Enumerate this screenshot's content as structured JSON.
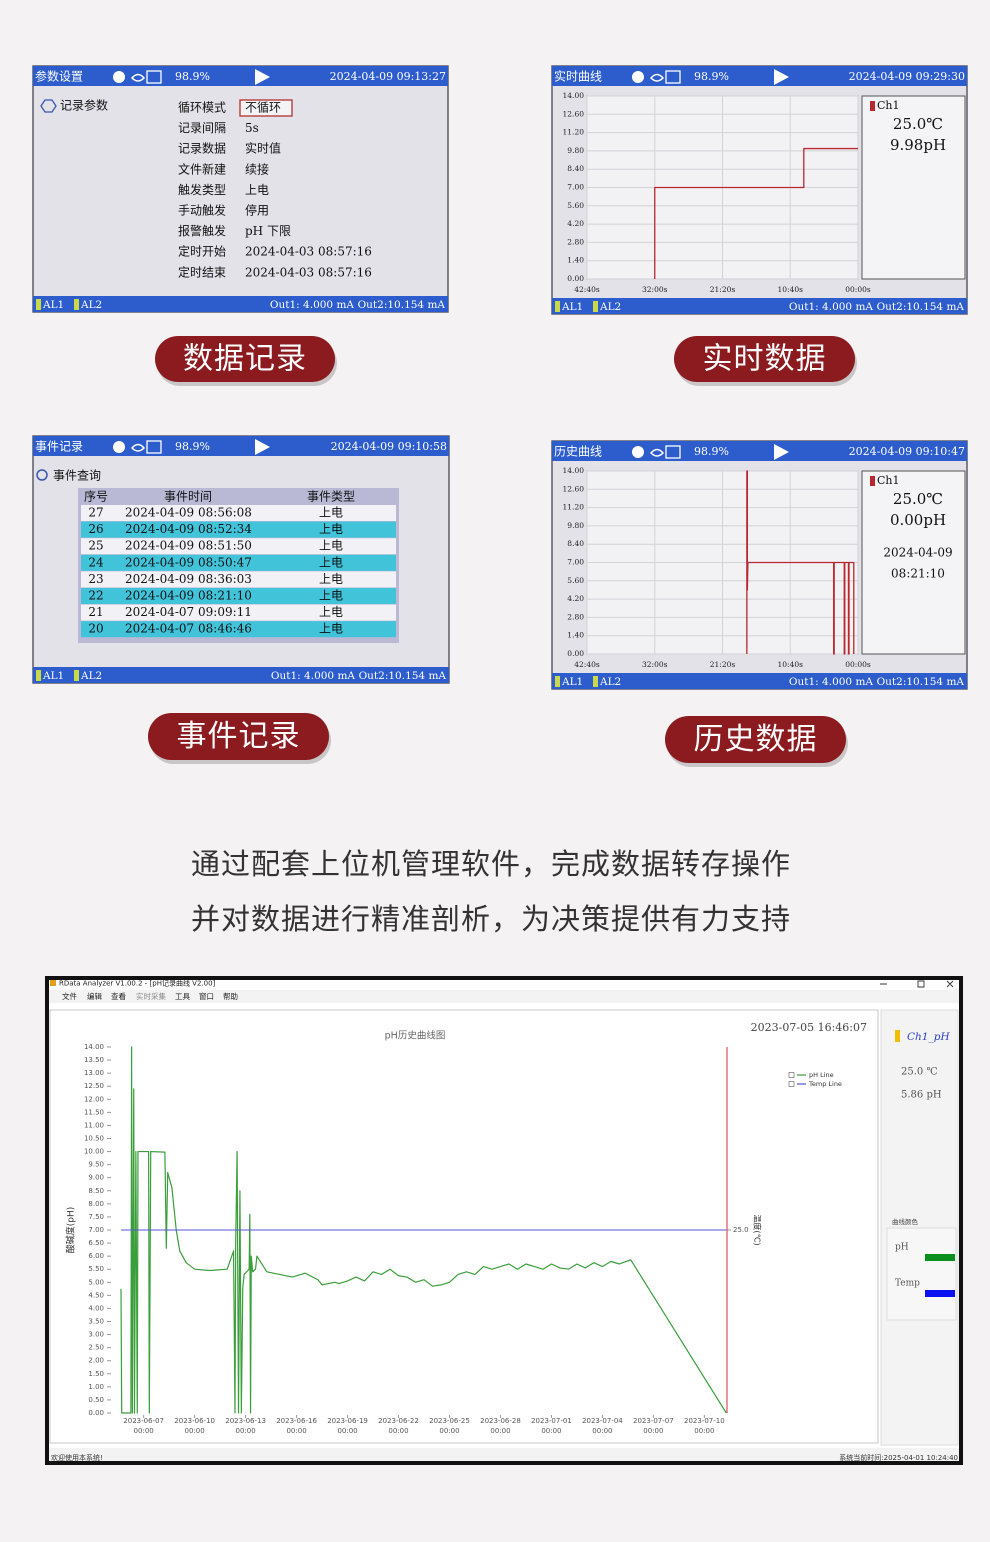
{
  "screens": [
    {
      "title": "参数设置",
      "battery": "98.9%",
      "datetime": "2024-04-09 09:13:27",
      "menu": "记录参数",
      "settings": [
        {
          "label": "循环模式",
          "value": "不循环"
        },
        {
          "label": "记录间隔",
          "value": "5s"
        },
        {
          "label": "记录数据",
          "value": "实时值"
        },
        {
          "label": "文件新建",
          "value": "续接"
        },
        {
          "label": "触发类型",
          "value": "上电"
        },
        {
          "label": "手动触发",
          "value": "停用"
        },
        {
          "label": "报警触发",
          "value": "pH  下限"
        },
        {
          "label": "定时开始",
          "value": "2024-04-03 08:57:16"
        },
        {
          "label": "定时结束",
          "value": "2024-04-03 08:57:16"
        }
      ],
      "alarms": [
        "AL1",
        "AL2"
      ],
      "out1": "Out1: 4.000 mA",
      "out2": "Out2:10.154 mA",
      "caption": "数据记录"
    },
    {
      "title": "实时曲线",
      "battery": "98.9%",
      "datetime": "2024-04-09 09:29:30",
      "chart_data": {
        "type": "line",
        "ylim": [
          0,
          14
        ],
        "yticks": [
          {
            "value": 0,
            "label": "0.00"
          },
          {
            "value": 1.4,
            "label": "1.40"
          },
          {
            "value": 2.8,
            "label": "2.80"
          },
          {
            "value": 4.2,
            "label": "4.20"
          },
          {
            "value": 5.6,
            "label": "5.60"
          },
          {
            "value": 7,
            "label": "7.00"
          },
          {
            "value": 8.4,
            "label": "8.40"
          },
          {
            "value": 9.8,
            "label": "9.80"
          },
          {
            "value": 11.2,
            "label": "11.20"
          },
          {
            "value": 12.6,
            "label": "12.60"
          },
          {
            "value": 14,
            "label": "14.00"
          }
        ],
        "xlim": [
          -2560,
          0
        ],
        "xticks": [
          {
            "value": -2560,
            "label": "42:40s"
          },
          {
            "value": -1920,
            "label": "32:00s"
          },
          {
            "value": -1280,
            "label": "21:20s"
          },
          {
            "value": -640,
            "label": "10:40s"
          },
          {
            "value": 0,
            "label": "00:00s"
          }
        ],
        "series": [
          {
            "name": "Ch1",
            "color": "#b8282e",
            "x": [
              -1920,
              -1920,
              -512,
              -512,
              0
            ],
            "values": [
              0,
              7.0,
              7.0,
              9.98,
              9.98
            ]
          }
        ],
        "readings": [
          "25.0℃",
          "9.98pH"
        ]
      },
      "alarms": [
        "AL1",
        "AL2"
      ],
      "out1": "Out1: 4.000 mA",
      "out2": "Out2:10.154 mA",
      "caption": "实时数据"
    },
    {
      "title": "事件记录",
      "battery": "98.9%",
      "datetime": "2024-04-09 09:10:58",
      "menu": "事件查询",
      "events": {
        "columns": [
          "序号",
          "事件时间",
          "事件类型"
        ],
        "rows": [
          [
            "27",
            "2024-04-09 08:56:08",
            "上电"
          ],
          [
            "26",
            "2024-04-09 08:52:34",
            "上电"
          ],
          [
            "25",
            "2024-04-09 08:51:50",
            "上电"
          ],
          [
            "24",
            "2024-04-09 08:50:47",
            "上电"
          ],
          [
            "23",
            "2024-04-09 08:36:03",
            "上电"
          ],
          [
            "22",
            "2024-04-09 08:21:10",
            "上电"
          ],
          [
            "21",
            "2024-04-07 09:09:11",
            "上电"
          ],
          [
            "20",
            "2024-04-07 08:46:46",
            "上电"
          ]
        ]
      },
      "alarms": [
        "AL1",
        "AL2"
      ],
      "out1": "Out1: 4.000 mA",
      "out2": "Out2:10.154 mA",
      "caption": "事件记录"
    },
    {
      "title": "历史曲线",
      "battery": "98.9%",
      "datetime": "2024-04-09 09:10:47",
      "chart_data": {
        "type": "line",
        "ylim": [
          0,
          14
        ],
        "yticks": [
          {
            "value": 0,
            "label": "0.00"
          },
          {
            "value": 1.4,
            "label": "1.40"
          },
          {
            "value": 2.8,
            "label": "2.80"
          },
          {
            "value": 4.2,
            "label": "4.20"
          },
          {
            "value": 5.6,
            "label": "5.60"
          },
          {
            "value": 7,
            "label": "7.00"
          },
          {
            "value": 8.4,
            "label": "8.40"
          },
          {
            "value": 9.8,
            "label": "9.80"
          },
          {
            "value": 11.2,
            "label": "11.20"
          },
          {
            "value": 12.6,
            "label": "12.60"
          },
          {
            "value": 14,
            "label": "14.00"
          }
        ],
        "xlim": [
          -2560,
          0
        ],
        "xticks": [
          {
            "value": -2560,
            "label": "42:40s"
          },
          {
            "value": -1920,
            "label": "32:00s"
          },
          {
            "value": -1280,
            "label": "21:20s"
          },
          {
            "value": -640,
            "label": "10:40s"
          },
          {
            "value": 0,
            "label": "00:00s"
          }
        ],
        "series": [
          {
            "name": "Ch1",
            "color": "#b8282e",
            "x": [
              -1050,
              -1050,
              -1045,
              -1045,
              -1040,
              -230,
              -230,
              -225,
              -225,
              -130,
              -130,
              -125,
              -125,
              -90,
              -90,
              -85,
              -85,
              -40,
              -40
            ],
            "values": [
              0,
              14,
              14,
              4.9,
              7.0,
              7.0,
              0,
              0,
              7.0,
              7.0,
              0,
              0,
              7.0,
              7.0,
              0,
              0,
              7.0,
              7.0,
              0
            ]
          }
        ],
        "readings": [
          "25.0℃",
          "0.00pH",
          "2024-04-09",
          "08:21:10"
        ]
      },
      "alarms": [
        "AL1",
        "AL2"
      ],
      "out1": "Out1: 4.000 mA",
      "out2": "Out2:10.154 mA",
      "caption": "历史数据"
    }
  ],
  "description": [
    "通过配套上位机管理软件，完成数据转存操作",
    "并对数据进行精准剖析，为决策提供有力支持"
  ],
  "software": {
    "window_title": "RData Analyzer V1.00.2 - [pH记录曲线 V2.00]",
    "menu": [
      "文件",
      "编辑",
      "查看",
      "实时采集",
      "工具",
      "窗口",
      "帮助"
    ],
    "chart_data": {
      "type": "line",
      "title": "pH历史曲线图",
      "timestamp": "2023-07-05 16:46:07",
      "y_label": "酸碱度(pH)",
      "y2_label": "温度(℃)",
      "xlim": [
        "2023-06-05 16:00",
        "2023-07-11 08:00"
      ],
      "xticks": [
        {
          "value": "2023-06-07 00:00",
          "label": [
            "2023-06-07",
            "00:00"
          ]
        },
        {
          "value": "2023-06-10 00:00",
          "label": [
            "2023-06-10",
            "00:00"
          ]
        },
        {
          "value": "2023-06-13 00:00",
          "label": [
            "2023-06-13",
            "00:00"
          ]
        },
        {
          "value": "2023-06-16 00:00",
          "label": [
            "2023-06-16",
            "00:00"
          ]
        },
        {
          "value": "2023-06-19 00:00",
          "label": [
            "2023-06-19",
            "00:00"
          ]
        },
        {
          "value": "2023-06-22 00:00",
          "label": [
            "2023-06-22",
            "00:00"
          ]
        },
        {
          "value": "2023-06-25 00:00",
          "label": [
            "2023-06-25",
            "00:00"
          ]
        },
        {
          "value": "2023-06-28 00:00",
          "label": [
            "2023-06-28",
            "00:00"
          ]
        },
        {
          "value": "2023-07-01 00:00",
          "label": [
            "2023-07-01",
            "00:00"
          ]
        },
        {
          "value": "2023-07-04 00:00",
          "label": [
            "2023-07-04",
            "00:00"
          ]
        },
        {
          "value": "2023-07-07 00:00",
          "label": [
            "2023-07-07",
            "00:00"
          ]
        },
        {
          "value": "2023-07-10 00:00",
          "label": [
            "2023-07-10",
            "00:00"
          ]
        }
      ],
      "ylim": [
        0,
        14
      ],
      "yticks": [
        {
          "value": 0,
          "label": "0.00"
        },
        {
          "value": 0.5,
          "label": "0.50"
        },
        {
          "value": 1,
          "label": "1.00"
        },
        {
          "value": 1.5,
          "label": "1.50"
        },
        {
          "value": 2,
          "label": "2.00"
        },
        {
          "value": 2.5,
          "label": "2.50"
        },
        {
          "value": 3,
          "label": "3.00"
        },
        {
          "value": 3.5,
          "label": "3.50"
        },
        {
          "value": 4,
          "label": "4.00"
        },
        {
          "value": 4.5,
          "label": "4.50"
        },
        {
          "value": 5,
          "label": "5.00"
        },
        {
          "value": 5.5,
          "label": "5.50"
        },
        {
          "value": 6,
          "label": "6.00"
        },
        {
          "value": 6.5,
          "label": "6.50"
        },
        {
          "value": 7,
          "label": "7.00"
        },
        {
          "value": 7.5,
          "label": "7.50"
        },
        {
          "value": 8,
          "label": "8.00"
        },
        {
          "value": 8.5,
          "label": "8.50"
        },
        {
          "value": 9,
          "label": "9.00"
        },
        {
          "value": 9.5,
          "label": "9.50"
        },
        {
          "value": 10,
          "label": "10.00"
        },
        {
          "value": 10.5,
          "label": "10.50"
        },
        {
          "value": 11,
          "label": "11.00"
        },
        {
          "value": 11.5,
          "label": "11.50"
        },
        {
          "value": 12,
          "label": "12.00"
        },
        {
          "value": 12.5,
          "label": "12.50"
        },
        {
          "value": 13,
          "label": "13.00"
        },
        {
          "value": 13.5,
          "label": "13.50"
        },
        {
          "value": 14,
          "label": "14.00"
        }
      ],
      "y2lim": [
        0,
        50
      ],
      "y2ticks": [
        {
          "value": 25,
          "label": "25.0"
        }
      ],
      "series": [
        {
          "name": "pH Line",
          "color": "#3a9e3a",
          "x": [
            "2023-06-05 16:00",
            "2023-06-05 17:00",
            "2023-06-06 06:00",
            "2023-06-06 07:00",
            "2023-06-06 08:00",
            "2023-06-06 10:00",
            "2023-06-06 11:00",
            "2023-06-06 13:00",
            "2023-06-06 15:00",
            "2023-06-06 16:00",
            "2023-06-07 07:00",
            "2023-06-07 08:00",
            "2023-06-07 10:00",
            "2023-06-08 06:00",
            "2023-06-08 08:00",
            "2023-06-08 10:00",
            "2023-06-08 16:00",
            "2023-06-08 22:00",
            "2023-06-09 03:00",
            "2023-06-09 12:00",
            "2023-06-10 00:00",
            "2023-06-10 21:00",
            "2023-06-11 22:00",
            "2023-06-12 07:00",
            "2023-06-12 09:00",
            "2023-06-12 10:00",
            "2023-06-12 12:00",
            "2023-06-12 14:00",
            "2023-06-12 16:00",
            "2023-06-12 18:00",
            "2023-06-12 20:00",
            "2023-06-12 22:00",
            "2023-06-13 05:00",
            "2023-06-13 06:00",
            "2023-06-13 07:00",
            "2023-06-13 08:00",
            "2023-06-13 10:00",
            "2023-06-13 14:00",
            "2023-06-13 16:00",
            "2023-06-14 06:00",
            "2023-06-15 00:00",
            "2023-06-15 18:00",
            "2023-06-16 12:00",
            "2023-06-17 06:00",
            "2023-06-17 12:00",
            "2023-06-18 06:00",
            "2023-06-18 12:00",
            "2023-06-19 00:00",
            "2023-06-19 12:00",
            "2023-06-20 00:00",
            "2023-06-20 12:00",
            "2023-06-21 00:00",
            "2023-06-21 12:00",
            "2023-06-22 00:00",
            "2023-06-22 12:00",
            "2023-06-23 00:00",
            "2023-06-23 12:00",
            "2023-06-24 00:00",
            "2023-06-24 12:00",
            "2023-06-25 00:00",
            "2023-06-25 12:00",
            "2023-06-26 00:00",
            "2023-06-26 12:00",
            "2023-06-27 00:00",
            "2023-06-27 12:00",
            "2023-06-28 00:00",
            "2023-06-28 12:00",
            "2023-06-29 00:00",
            "2023-06-29 12:00",
            "2023-06-30 00:00",
            "2023-06-30 12:00",
            "2023-07-01 00:00",
            "2023-07-01 12:00",
            "2023-07-02 00:00",
            "2023-07-02 12:00",
            "2023-07-03 00:00",
            "2023-07-03 12:00",
            "2023-07-04 00:00",
            "2023-07-04 12:00",
            "2023-07-05 00:00",
            "2023-07-05 16:00",
            "2023-07-11 07:00"
          ],
          "values": [
            4.75,
            0,
            0,
            14.0,
            0,
            12.4,
            0,
            10.0,
            0,
            10.0,
            10.0,
            0,
            10.0,
            9.98,
            6.3,
            9.2,
            8.6,
            7.0,
            6.2,
            5.75,
            5.5,
            5.45,
            5.5,
            6.2,
            0,
            6.5,
            10.0,
            0,
            8.5,
            0,
            4.8,
            5.3,
            5.5,
            7.6,
            0,
            6.0,
            5.4,
            5.5,
            6.0,
            5.4,
            5.3,
            5.2,
            5.35,
            5.1,
            4.9,
            5.0,
            4.95,
            5.05,
            5.2,
            5.05,
            5.4,
            5.3,
            5.5,
            5.25,
            5.2,
            5.0,
            5.1,
            4.85,
            4.9,
            5.0,
            5.3,
            5.4,
            5.3,
            5.6,
            5.5,
            5.6,
            5.7,
            5.5,
            5.7,
            5.6,
            5.5,
            5.7,
            5.55,
            5.5,
            5.7,
            5.55,
            5.75,
            5.6,
            5.8,
            5.7,
            5.86,
            0
          ]
        },
        {
          "name": "Temp Line",
          "color": "#5555d8",
          "axis": "y2",
          "x": [
            "2023-06-05 16:00",
            "2023-07-11 07:00"
          ],
          "values": [
            25,
            25
          ]
        }
      ]
    },
    "panel": {
      "channel": "Ch1_pH",
      "readings": [
        "25.0 ℃",
        "5.86 pH"
      ],
      "curve_colors_title": "曲线颜色",
      "curve_colors": [
        {
          "label": "pH",
          "color": "#0a8f1f"
        },
        {
          "label": "Temp",
          "color": "#0a10f0"
        }
      ]
    },
    "status_left": "欢迎使用本系统!",
    "status_right": "系统当前时间:2025-04-01 10:24:40"
  }
}
